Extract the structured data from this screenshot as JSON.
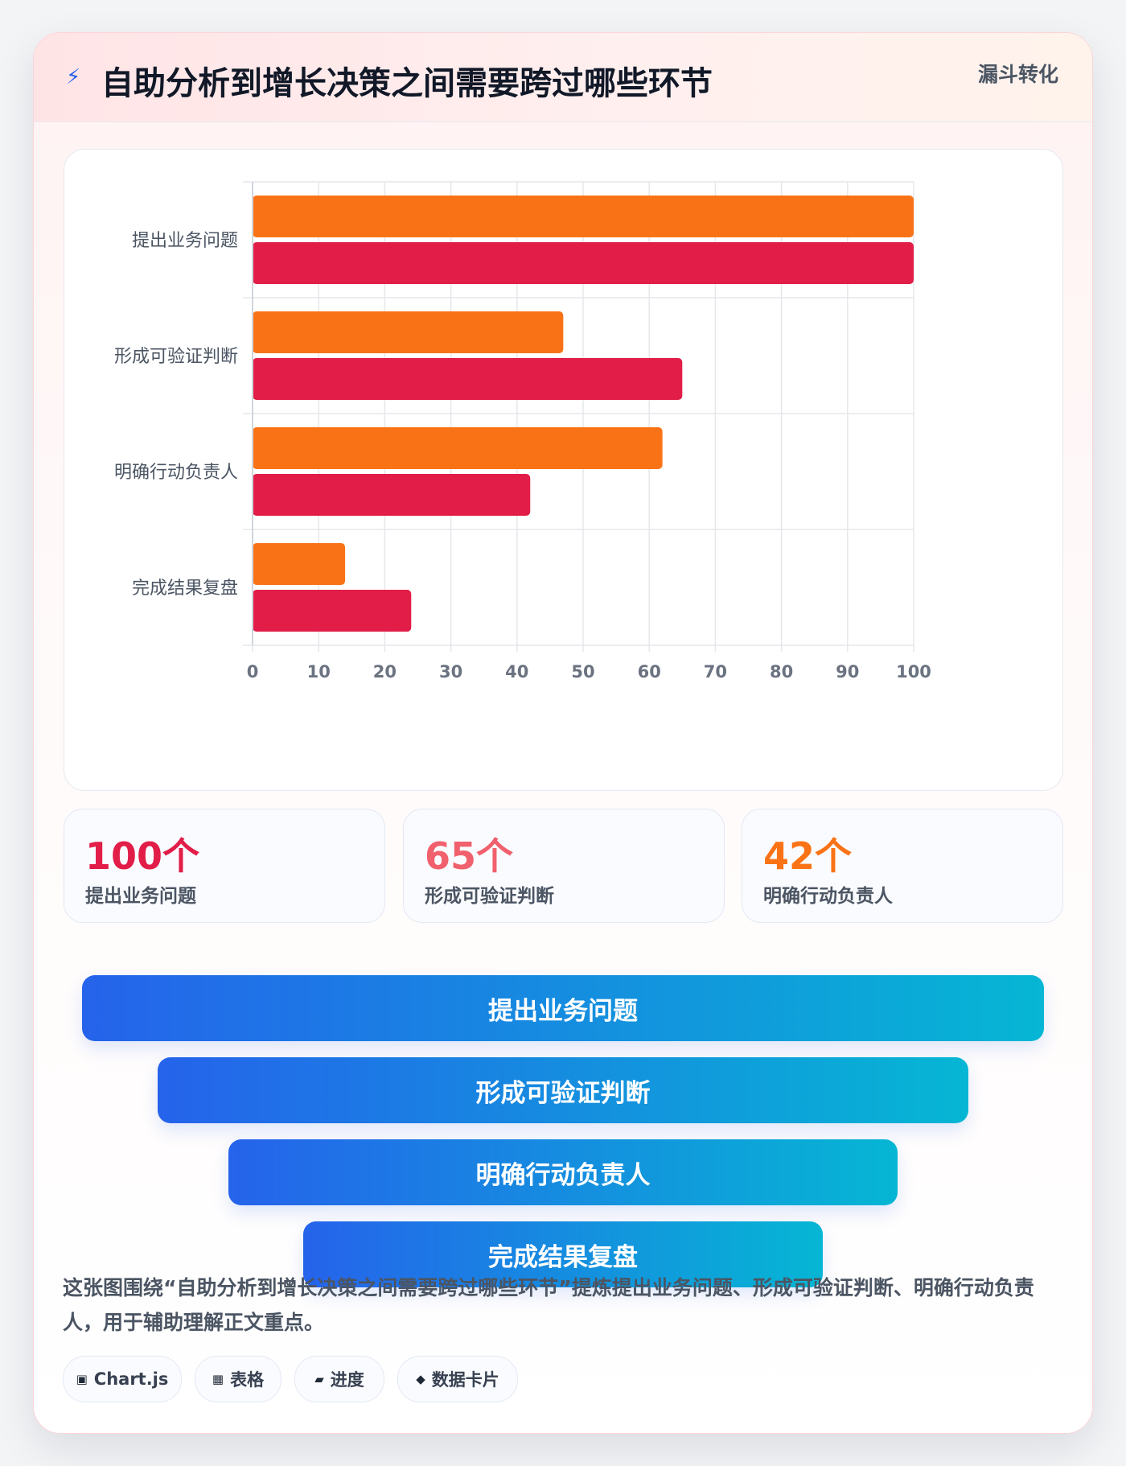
{
  "header": {
    "icon": "lightning-icon",
    "icon_glyph": "⚡",
    "title": "自助分析到增长决策之间需要跨过哪些环节",
    "tag": "漏斗转化"
  },
  "chart_data": {
    "type": "bar",
    "orientation": "horizontal",
    "categories": [
      "提出业务问题",
      "形成可验证判断",
      "明确行动负责人",
      "完成结果复盘"
    ],
    "series": [
      {
        "values": [
          100,
          47,
          62,
          14
        ],
        "color": "#f97316"
      },
      {
        "values": [
          100,
          65,
          42,
          24
        ],
        "color": "#e11d48"
      }
    ],
    "xlim": [
      0,
      100
    ],
    "x_ticks": [
      0,
      10,
      20,
      30,
      40,
      50,
      60,
      70,
      80,
      90,
      100
    ],
    "grid": true,
    "legend": "none",
    "title": "",
    "xlabel": "",
    "ylabel": ""
  },
  "stats": [
    {
      "value": "100个",
      "label": "提出业务问题",
      "color": "#e11d48"
    },
    {
      "value": "65个",
      "label": "形成可验证判断",
      "color": "#f0616d"
    },
    {
      "value": "42个",
      "label": "明确行动负责人",
      "color": "#f97316"
    }
  ],
  "funnel": [
    {
      "label": "提出业务问题"
    },
    {
      "label": "形成可验证判断"
    },
    {
      "label": "明确行动负责人"
    },
    {
      "label": "完成结果复盘"
    }
  ],
  "summary": "这张图围绕“自助分析到增长决策之间需要跨过哪些环节”提炼提出业务问题、形成可验证判断、明确行动负责人，用于辅助理解正文重点。",
  "chips": [
    {
      "icon": "chart-icon",
      "glyph": "▣",
      "label": "Chart.js"
    },
    {
      "icon": "table-icon",
      "glyph": "▦",
      "label": "表格"
    },
    {
      "icon": "progress-icon",
      "glyph": "▰",
      "label": "进度"
    },
    {
      "icon": "data-card-icon",
      "glyph": "◆",
      "label": "数据卡片"
    }
  ]
}
